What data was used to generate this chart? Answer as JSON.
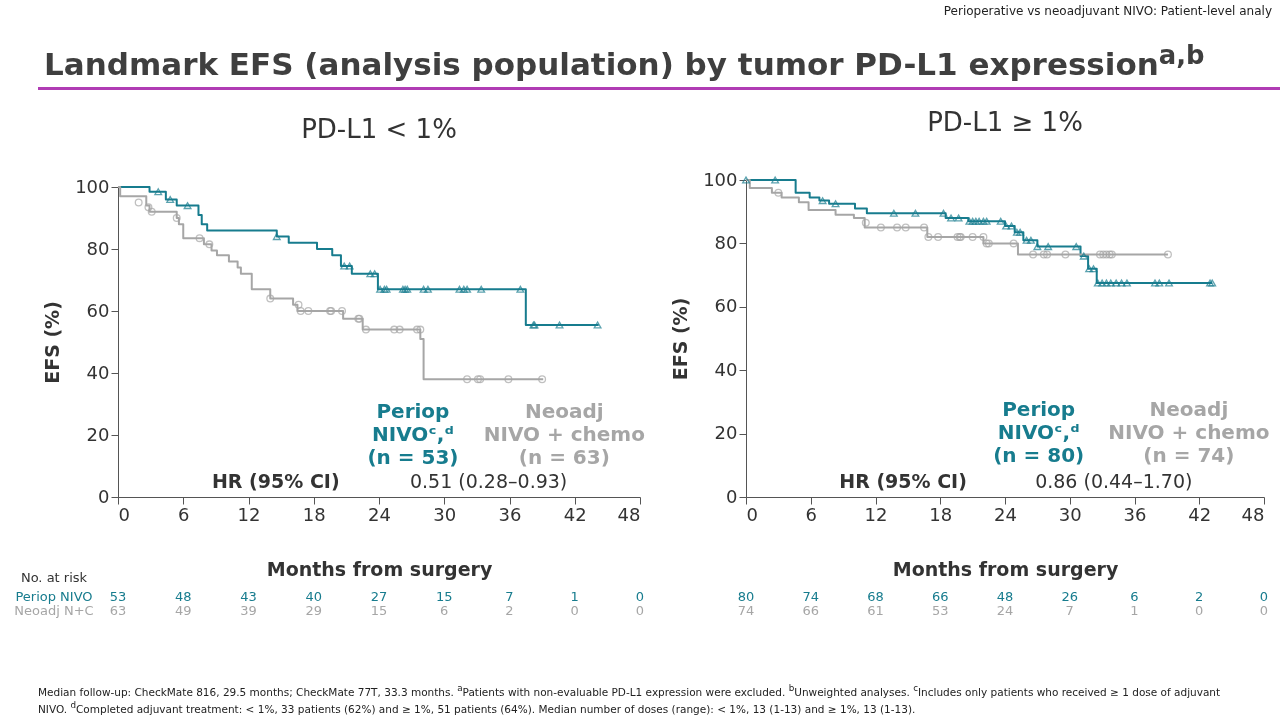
{
  "chart_data": [
    {
      "type": "step",
      "title": "PD-L1 < 1%",
      "xlabel": "Months from surgery",
      "ylabel": "EFS (%)",
      "xlim": [
        0,
        48
      ],
      "xticks": [
        0,
        6,
        12,
        18,
        24,
        30,
        36,
        42,
        48
      ],
      "ylim": [
        0,
        100
      ],
      "yticks": [
        0,
        20,
        40,
        60,
        80,
        100
      ],
      "annotations": [
        "Perioperative vs neoadjuvant NIVO: Patient-level analy",
        "Landmark EFS (analysis population) by tumor PD-L1 expression$^{a,b}$",
        "HR (95% CI)",
        "0.51 (0.28–0.93)",
        "No. at risk",
        "Periop NIVO",
        "Neoadj N+C",
        "53",
        "48",
        "43",
        "40",
        "27",
        "15",
        "7",
        "1",
        "0",
        "63",
        "49",
        "39",
        "29",
        "15",
        "6",
        "2",
        "0",
        "0",
        "Median follow-up: CheckMate 816, 29.5 months; CheckMate 77T, 33.3 months. $^{a}$Patients with non-evaluable PD-L1 expression were excluded. $^{b}$Unweighted analyses. $^{c}$Includes only patients who received ≥ 1 dose of adjuvant NIVO. $^{d}$Completed adjuvant treatment: < 1%, 33 patients (62%) and ≥ 1%, 51 patients (64%). Median number of doses (range): < 1%, 13 (1-13) and ≥ 1%, 13 (1-13)."
      ],
      "series": [
        {
          "name": "Periop\nNIVOᶜ,ᵈ\n(n = 53)",
          "type": "step",
          "marker": "none",
          "color": "#177c8e",
          "x": [
            0,
            2.9,
            4.4,
            5.4,
            7.4,
            7.7,
            8.2,
            14.6,
            15.7,
            18.3,
            19.7,
            20.5,
            21.5,
            23.9,
            37.5,
            44.2
          ],
          "values": [
            100,
            98.5,
            96,
            94,
            91,
            88,
            86,
            84,
            82,
            80,
            78,
            74.5,
            72,
            67,
            55.5,
            55.5
          ]
        },
        {
          "name": "Neoadj\nNIVO + chemo\n(n = 63)",
          "type": "step",
          "marker": "none",
          "color": "#a6a6a6",
          "x": [
            0,
            0.2,
            2.6,
            2.9,
            5.4,
            5.6,
            6.0,
            7.9,
            8.6,
            9.1,
            10.2,
            11.0,
            11.3,
            12.3,
            14.0,
            16.1,
            16.5,
            20.7,
            22.5,
            27.8,
            28.1,
            39.1
          ],
          "values": [
            100,
            97,
            94,
            92,
            90,
            88,
            83.5,
            81.5,
            79.5,
            78,
            76,
            74,
            72,
            67,
            64,
            62,
            60,
            57.5,
            54,
            51,
            38,
            38
          ]
        },
        {
          "type": "scatter",
          "marker": "triangle",
          "color": "#177c8e",
          "x": [
            3.7,
            4.8,
            6.4,
            14.6,
            20.8,
            21.3,
            23.2,
            23.6,
            24.1,
            24.5,
            24.7,
            26.2,
            26.4,
            26.6,
            28.1,
            28.5,
            31.4,
            31.8,
            32.1,
            33.4,
            37.0,
            38.2,
            38.3,
            40.6,
            44.1
          ],
          "values": [
            98.5,
            96,
            94,
            84,
            74.5,
            74.5,
            72,
            72,
            67,
            67,
            67,
            67,
            67,
            67,
            67,
            67,
            67,
            67,
            67,
            67,
            67,
            55.5,
            55.5,
            55.5,
            55.5
          ]
        },
        {
          "type": "scatter",
          "marker": "circle",
          "color": "#a6a6a6",
          "x": [
            1.9,
            2.8,
            3.1,
            5.4,
            7.5,
            8.4,
            14.0,
            16.6,
            16.8,
            17.5,
            19.5,
            19.6,
            20.6,
            22.1,
            22.2,
            22.8,
            25.4,
            25.9,
            27.5,
            27.8,
            32.1,
            33.1,
            33.3,
            35.9,
            39.0
          ],
          "values": [
            95,
            93.5,
            92,
            90,
            83.5,
            81.5,
            64,
            62,
            60,
            60,
            60,
            60,
            60,
            57.5,
            57.5,
            54,
            54,
            54,
            54,
            54,
            38,
            38,
            38,
            38,
            38
          ]
        }
      ]
    },
    {
      "type": "step",
      "title": "PD-L1 ≥ 1%",
      "xlabel": "Months from surgery",
      "ylabel": "EFS (%)",
      "xlim": [
        0,
        48
      ],
      "xticks": [
        0,
        6,
        12,
        18,
        24,
        30,
        36,
        42,
        48
      ],
      "ylim": [
        0,
        100
      ],
      "yticks": [
        0,
        20,
        40,
        60,
        80,
        100
      ],
      "annotations": [
        "HR (95% CI)",
        "0.86 (0.44–1.70)",
        "80",
        "74",
        "68",
        "66",
        "48",
        "26",
        "6",
        "2",
        "0",
        "74",
        "66",
        "61",
        "53",
        "24",
        "7",
        "1",
        "0",
        "0"
      ],
      "series": [
        {
          "name": "Periop\nNIVOᶜ,ᵈ\n(n = 80)",
          "type": "step",
          "marker": "none",
          "color": "#177c8e",
          "x": [
            0,
            4.6,
            5.9,
            6.8,
            7.7,
            10.1,
            11.2,
            18.5,
            20.6,
            24.0,
            24.9,
            25.7,
            27.0,
            31.0,
            31.7,
            32.5,
            43.2
          ],
          "values": [
            100,
            96,
            94.5,
            93.5,
            92.5,
            91,
            89.5,
            88,
            87,
            85.5,
            83.5,
            81,
            79,
            76,
            72,
            67.5,
            67.5
          ]
        },
        {
          "name": "Neoadj\nNIVO + chemo\n(n = 74)",
          "type": "step",
          "marker": "none",
          "color": "#a6a6a6",
          "x": [
            0,
            0.35,
            2.4,
            3.3,
            4.9,
            5.8,
            8.3,
            10.0,
            11.0,
            16.8,
            22.0,
            25.2,
            39.1
          ],
          "values": [
            100,
            97.5,
            96,
            94.5,
            93,
            90.5,
            89,
            88,
            85,
            82,
            80,
            76.5,
            76.5
          ]
        },
        {
          "type": "scatter",
          "marker": "triangle",
          "color": "#177c8e",
          "x": [
            0,
            2.7,
            7.1,
            8.3,
            13.7,
            15.7,
            18.3,
            19.0,
            19.7,
            20.7,
            21.0,
            21.3,
            21.6,
            22.0,
            22.3,
            23.6,
            24.1,
            24.6,
            25.1,
            25.4,
            26.0,
            26.4,
            27.0,
            28.0,
            30.6,
            31.3,
            31.8,
            32.2,
            32.6,
            33.0,
            33.4,
            33.8,
            34.3,
            34.8,
            35.3,
            37.9,
            38.3,
            39.2,
            43.0,
            43.2
          ],
          "values": [
            100,
            100,
            93.5,
            92.5,
            89.5,
            89.5,
            89.5,
            88,
            88,
            87,
            87,
            87,
            87,
            87,
            87,
            87,
            85.5,
            85.5,
            83.5,
            83.5,
            81,
            81,
            79,
            79,
            79,
            76,
            72,
            72,
            67.5,
            67.5,
            67.5,
            67.5,
            67.5,
            67.5,
            67.5,
            67.5,
            67.5,
            67.5,
            67.5,
            67.5
          ]
        },
        {
          "type": "scatter",
          "marker": "circle",
          "color": "#a6a6a6",
          "x": [
            3.0,
            11.1,
            12.5,
            14.0,
            14.8,
            16.5,
            16.9,
            17.8,
            19.6,
            19.8,
            19.9,
            21.0,
            22.0,
            22.3,
            22.5,
            24.8,
            26.6,
            27.6,
            27.9,
            29.6,
            32.8,
            33.1,
            33.4,
            33.7,
            33.9,
            39.1
          ],
          "values": [
            96,
            86.5,
            85,
            85,
            85,
            85,
            82,
            82,
            82,
            82,
            82,
            82,
            82,
            80,
            80,
            80,
            76.5,
            76.5,
            76.5,
            76.5,
            76.5,
            76.5,
            76.5,
            76.5,
            76.5,
            76.5
          ]
        }
      ]
    }
  ]
}
